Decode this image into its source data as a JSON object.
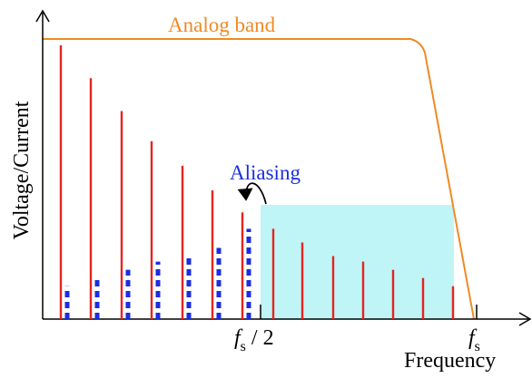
{
  "labels": {
    "analog_band": "Analog band",
    "aliasing": "Aliasing",
    "y_axis": "Voltage/Current",
    "x_axis": "Frequency",
    "fs_half_symbol": "f",
    "fs_half_subscript": "s",
    "fs_half_suffix": " / 2",
    "fs_symbol": "f",
    "fs_subscript": "s"
  },
  "colors": {
    "signal_lines": "#e8231f",
    "aliased_lines": "#1a2ee0",
    "analog_band": "#f08a24",
    "shaded_region": "#bff5f7",
    "axes": "#000000"
  },
  "spectrum": {
    "original_heights": [
      1.0,
      0.88,
      0.76,
      0.65,
      0.56,
      0.47,
      0.39
    ],
    "aliased_heights": [
      0.12,
      0.15,
      0.18,
      0.21,
      0.23,
      0.26,
      0.33
    ],
    "high_heights": [
      0.33,
      0.28,
      0.23,
      0.21,
      0.18,
      0.15,
      0.12
    ]
  }
}
